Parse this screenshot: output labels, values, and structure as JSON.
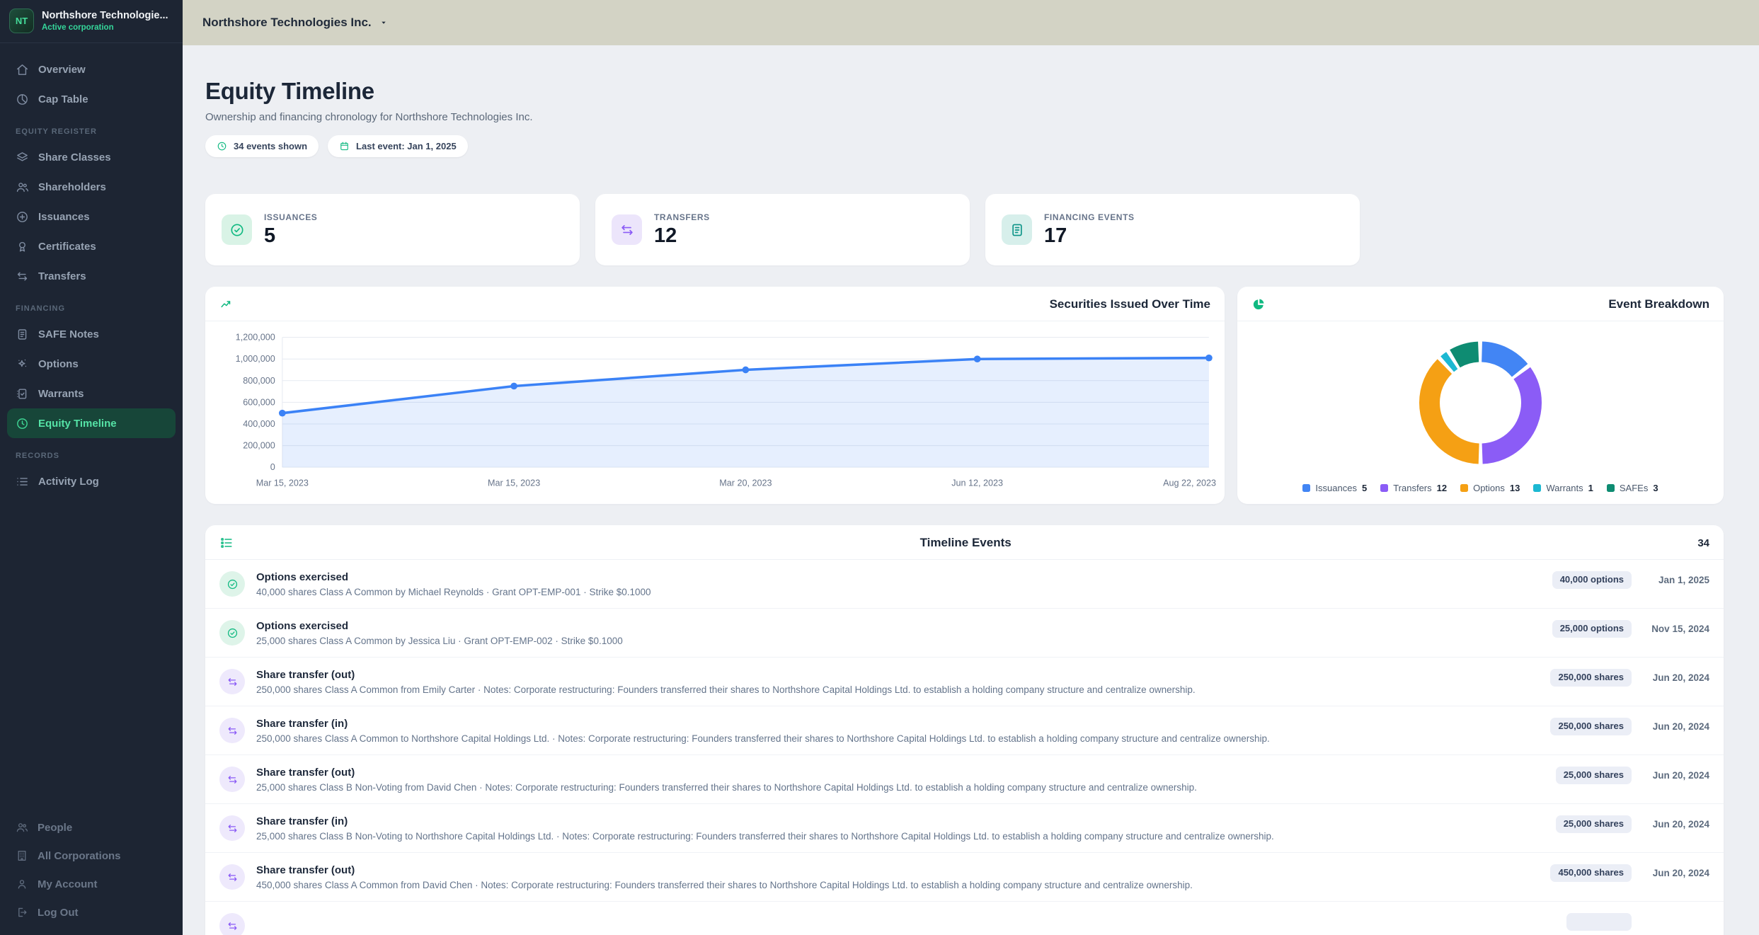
{
  "accent_colors": {
    "green": "#10b981",
    "purple": "#8b5cf6",
    "teal": "#0d9488",
    "blue": "#3b82f6",
    "topbar_beige": "#d3d3c5",
    "sidebar_dark": "#1d2533"
  },
  "sidebar": {
    "logo_text": "NT",
    "company_name": "Northshore Technologie...",
    "company_status": "Active corporation",
    "primary_items": [
      {
        "label": "Overview",
        "icon": "home-icon"
      },
      {
        "label": "Cap Table",
        "icon": "pie-chart-icon"
      }
    ],
    "sections": [
      {
        "label": "EQUITY REGISTER",
        "items": [
          {
            "label": "Share Classes",
            "icon": "layers-icon"
          },
          {
            "label": "Shareholders",
            "icon": "users-icon"
          },
          {
            "label": "Issuances",
            "icon": "plus-circle-icon"
          },
          {
            "label": "Certificates",
            "icon": "award-icon"
          },
          {
            "label": "Transfers",
            "icon": "transfer-icon"
          }
        ]
      },
      {
        "label": "FINANCING",
        "items": [
          {
            "label": "SAFE Notes",
            "icon": "file-text-icon"
          },
          {
            "label": "Options",
            "icon": "sparkles-icon"
          },
          {
            "label": "Warrants",
            "icon": "ballot-check-icon"
          },
          {
            "label": "Equity Timeline",
            "icon": "clock-icon",
            "active": true
          }
        ]
      },
      {
        "label": "RECORDS",
        "items": [
          {
            "label": "Activity Log",
            "icon": "list-icon"
          }
        ]
      }
    ],
    "footer_items": [
      {
        "label": "People",
        "icon": "users-icon"
      },
      {
        "label": "All Corporations",
        "icon": "building-icon"
      },
      {
        "label": "My Account",
        "icon": "user-icon"
      },
      {
        "label": "Log Out",
        "icon": "logout-icon"
      }
    ]
  },
  "topbar": {
    "company_selector": "Northshore Technologies Inc."
  },
  "header": {
    "title": "Equity Timeline",
    "subtitle": "Ownership and financing chronology for Northshore Technologies Inc.",
    "badges": [
      {
        "icon": "clock-icon",
        "label": "34 events shown"
      },
      {
        "icon": "calendar-icon",
        "label": "Last event: Jan 1, 2025"
      }
    ]
  },
  "stats": [
    {
      "label": "ISSUANCES",
      "value": "5",
      "icon": "check-circle-icon",
      "color": "#10b981",
      "bg": "#d9f3e6"
    },
    {
      "label": "TRANSFERS",
      "value": "12",
      "icon": "transfer-icon",
      "color": "#8b5cf6",
      "bg": "#ece5fb"
    },
    {
      "label": "FINANCING EVENTS",
      "value": "17",
      "icon": "file-text-icon",
      "color": "#0d9488",
      "bg": "#d7efeb"
    }
  ],
  "chart_data": [
    {
      "type": "area",
      "title": "Securities Issued Over Time",
      "icon": "trending-up-icon",
      "x": [
        "Mar 15, 2023",
        "Mar 15, 2023",
        "Mar 20, 2023",
        "Jun 12, 2023",
        "Aug 22, 2023"
      ],
      "values": [
        500000,
        750000,
        900000,
        1000000,
        1010000
      ],
      "ylim": [
        0,
        1200000
      ],
      "yticks": [
        0,
        200000,
        400000,
        600000,
        800000,
        1000000,
        1200000
      ],
      "grid": true,
      "legend_position": "none",
      "line_color": "#3b82f6",
      "fill_color": "rgba(59,130,246,0.13)"
    },
    {
      "type": "pie",
      "title": "Event Breakdown",
      "icon": "pie-filled-icon",
      "legend_position": "bottom",
      "segments": [
        {
          "label": "Issuances",
          "value": 5,
          "color": "#4285f4"
        },
        {
          "label": "Transfers",
          "value": 12,
          "color": "#8b5cf6"
        },
        {
          "label": "Options",
          "value": 13,
          "color": "#f5a014"
        },
        {
          "label": "Warrants",
          "value": 1,
          "color": "#1cb8d2"
        },
        {
          "label": "SAFEs",
          "value": 3,
          "color": "#0e8c72"
        }
      ]
    }
  ],
  "timeline": {
    "title": "Timeline Events",
    "count": "34",
    "icon": "ordered-list-icon",
    "event_types": {
      "options": {
        "icon": "check-circle-icon",
        "color": "#10b981",
        "bg": "#def4e9"
      },
      "transfer": {
        "icon": "transfer-icon",
        "color": "#8b5cf6",
        "bg": "#eee9fc"
      }
    },
    "events": [
      {
        "type": "options",
        "title": "Options exercised",
        "subtitle": "40,000 shares Class A Common by Michael Reynolds · Grant OPT-EMP-001 · Strike $0.1000",
        "badge": "40,000 options",
        "date": "Jan 1, 2025"
      },
      {
        "type": "options",
        "title": "Options exercised",
        "subtitle": "25,000 shares Class A Common by Jessica Liu · Grant OPT-EMP-002 · Strike $0.1000",
        "badge": "25,000 options",
        "date": "Nov 15, 2024"
      },
      {
        "type": "transfer",
        "title": "Share transfer (out)",
        "subtitle": "250,000 shares Class A Common from Emily Carter · Notes: Corporate restructuring: Founders transferred their shares to Northshore Capital Holdings Ltd. to establish a holding company structure and centralize ownership.",
        "badge": "250,000 shares",
        "date": "Jun 20, 2024"
      },
      {
        "type": "transfer",
        "title": "Share transfer (in)",
        "subtitle": "250,000 shares Class A Common to Northshore Capital Holdings Ltd. · Notes: Corporate restructuring: Founders transferred their shares to Northshore Capital Holdings Ltd. to establish a holding company structure and centralize ownership.",
        "badge": "250,000 shares",
        "date": "Jun 20, 2024"
      },
      {
        "type": "transfer",
        "title": "Share transfer (out)",
        "subtitle": "25,000 shares Class B Non-Voting from David Chen · Notes: Corporate restructuring: Founders transferred their shares to Northshore Capital Holdings Ltd. to establish a holding company structure and centralize ownership.",
        "badge": "25,000 shares",
        "date": "Jun 20, 2024"
      },
      {
        "type": "transfer",
        "title": "Share transfer (in)",
        "subtitle": "25,000 shares Class B Non-Voting to Northshore Capital Holdings Ltd. · Notes: Corporate restructuring: Founders transferred their shares to Northshore Capital Holdings Ltd. to establish a holding company structure and centralize ownership.",
        "badge": "25,000 shares",
        "date": "Jun 20, 2024"
      },
      {
        "type": "transfer",
        "title": "Share transfer (out)",
        "subtitle": "450,000 shares Class A Common from David Chen · Notes: Corporate restructuring: Founders transferred their shares to Northshore Capital Holdings Ltd. to establish a holding company structure and centralize ownership.",
        "badge": "450,000 shares",
        "date": "Jun 20, 2024"
      },
      {
        "type": "transfer",
        "title": "",
        "subtitle": "",
        "badge": "",
        "date": "",
        "partial": true
      }
    ]
  }
}
